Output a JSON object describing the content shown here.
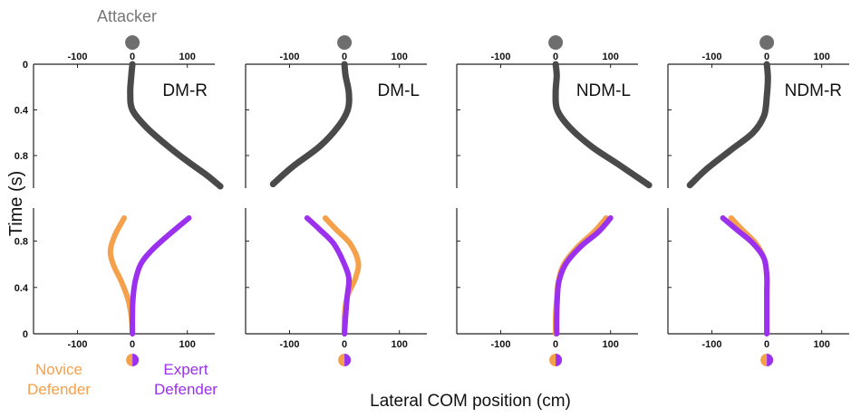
{
  "attacker_label": "Attacker",
  "y_axis_label": "Time (s)",
  "x_axis_label": "Lateral COM position (cm)",
  "legend": {
    "novice": [
      "Novice",
      "Defender"
    ],
    "expert": [
      "Expert",
      "Defender"
    ]
  },
  "colors": {
    "attacker": "#4a4a4a",
    "novice": "#f5a04b",
    "expert": "#9b30ee",
    "axis": "#222222",
    "attacker_marker": "#6e6e6e"
  },
  "chart_data": {
    "type": "line",
    "x_ticks": [
      -100,
      0,
      100
    ],
    "xlim": [
      -180,
      150
    ],
    "top_y_ticks": [
      "0",
      "0.4",
      "0.8"
    ],
    "bottom_y_ticks": [
      "0.8",
      "0.4",
      "0"
    ],
    "panels": [
      {
        "condition": "DM-R",
        "attacker": {
          "x": [
            0,
            -2,
            -4,
            0,
            25,
            60,
            100,
            135,
            160
          ],
          "t": [
            0,
            0.1,
            0.25,
            0.4,
            0.55,
            0.7,
            0.85,
            0.97,
            1.07
          ]
        },
        "novice": {
          "x": [
            -15,
            -32,
            -40,
            -35,
            -20,
            -8,
            -2,
            0
          ],
          "t": [
            1.0,
            0.85,
            0.72,
            0.6,
            0.45,
            0.3,
            0.15,
            0
          ]
        },
        "expert": {
          "x": [
            103,
            65,
            35,
            15,
            5,
            1,
            0,
            0
          ],
          "t": [
            1.0,
            0.85,
            0.72,
            0.6,
            0.45,
            0.3,
            0.15,
            0
          ]
        }
      },
      {
        "condition": "DM-L",
        "attacker": {
          "x": [
            0,
            2,
            8,
            6,
            -12,
            -45,
            -95,
            -130
          ],
          "t": [
            0,
            0.1,
            0.25,
            0.4,
            0.55,
            0.72,
            0.9,
            1.05
          ]
        },
        "novice": {
          "x": [
            -35,
            -15,
            10,
            25,
            20,
            5,
            0,
            0
          ],
          "t": [
            1.0,
            0.9,
            0.78,
            0.62,
            0.48,
            0.32,
            0.15,
            0
          ]
        },
        "expert": {
          "x": [
            -68,
            -45,
            -20,
            -2,
            8,
            5,
            2,
            0
          ],
          "t": [
            1.0,
            0.9,
            0.78,
            0.62,
            0.48,
            0.32,
            0.15,
            0
          ]
        }
      },
      {
        "condition": "NDM-L",
        "attacker": {
          "x": [
            0,
            2,
            0,
            3,
            25,
            65,
            115,
            170
          ],
          "t": [
            0,
            0.1,
            0.25,
            0.4,
            0.55,
            0.72,
            0.88,
            1.06
          ]
        },
        "novice": {
          "x": [
            92,
            70,
            40,
            15,
            5,
            2,
            0,
            0
          ],
          "t": [
            1.0,
            0.88,
            0.75,
            0.6,
            0.45,
            0.3,
            0.15,
            0
          ]
        },
        "expert": {
          "x": [
            100,
            78,
            45,
            18,
            6,
            3,
            2,
            2
          ],
          "t": [
            1.0,
            0.88,
            0.75,
            0.6,
            0.45,
            0.3,
            0.15,
            0
          ]
        }
      },
      {
        "condition": "NDM-R",
        "attacker": {
          "x": [
            0,
            2,
            0,
            -5,
            -25,
            -65,
            -110,
            -140
          ],
          "t": [
            0,
            0.12,
            0.28,
            0.45,
            0.6,
            0.75,
            0.92,
            1.06
          ]
        },
        "novice": {
          "x": [
            -65,
            -45,
            -20,
            -5,
            0,
            0,
            0,
            0
          ],
          "t": [
            1.0,
            0.9,
            0.78,
            0.65,
            0.5,
            0.35,
            0.15,
            0
          ]
        },
        "expert": {
          "x": [
            -80,
            -55,
            -25,
            -5,
            0,
            0,
            0,
            0
          ],
          "t": [
            1.0,
            0.9,
            0.78,
            0.65,
            0.5,
            0.35,
            0.15,
            0
          ]
        }
      }
    ]
  }
}
